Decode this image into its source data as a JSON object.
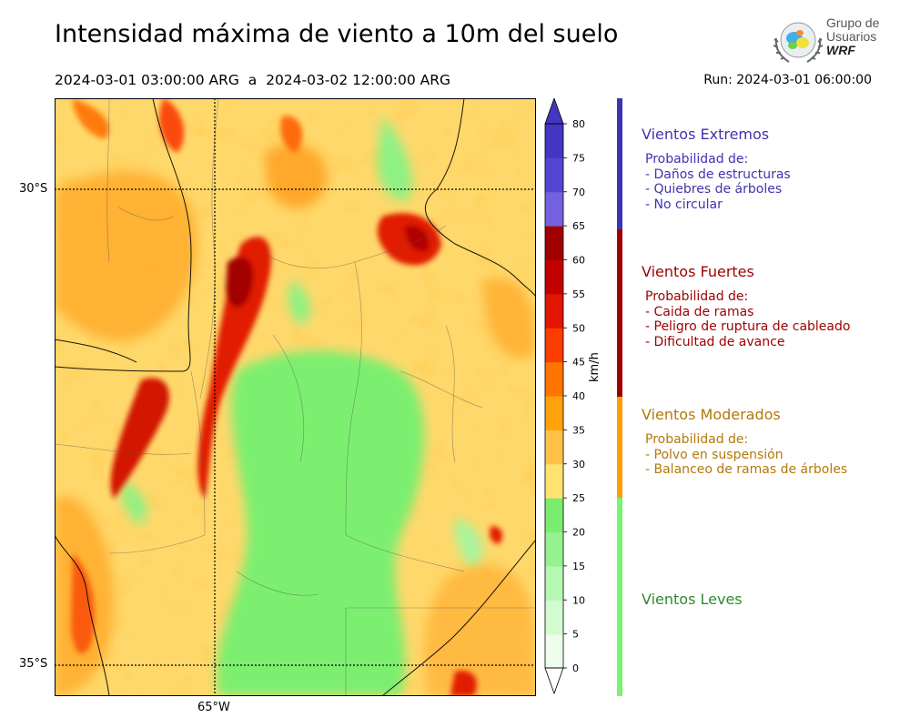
{
  "header": {
    "title": "Intensidad máxima de viento a 10m del suelo",
    "period": "2024-03-01 03:00:00 ARG  a  2024-03-02 12:00:00 ARG",
    "run": "Run: 2024-03-01 06:00:00"
  },
  "logo": {
    "line1": "Grupo de",
    "line2": "Usuarios",
    "line3": "WRF"
  },
  "map": {
    "lat_labels": [
      "30°S",
      "35°S"
    ],
    "lon_labels": [
      "65°W"
    ]
  },
  "colorbar": {
    "unit": "km/h",
    "ticks": [
      "0",
      "5",
      "10",
      "15",
      "20",
      "25",
      "30",
      "35",
      "40",
      "45",
      "50",
      "55",
      "60",
      "65",
      "70",
      "75",
      "80"
    ],
    "colors": [
      "#ecfdec",
      "#d2fbd0",
      "#b6f7b2",
      "#95f28e",
      "#78ed6e",
      "#ffe270",
      "#ffc247",
      "#ffa20c",
      "#ff7300",
      "#fa3c00",
      "#e11500",
      "#c20000",
      "#a10000",
      "#7461e0",
      "#5446d3",
      "#4336c2"
    ]
  },
  "categories": [
    {
      "name": "Vientos Extremos",
      "color": "#3f33b0",
      "bar_color": "#3f33b0",
      "desc": [
        "Probabilidad de:",
        "- Daños de estructuras",
        "- Quiebres de árboles",
        "- No circular"
      ]
    },
    {
      "name": "Vientos Fuertes",
      "color": "#9e0000",
      "bar_color": "#9e0000",
      "desc": [
        "Probabilidad de:",
        "- Caida de ramas",
        "- Peligro de ruptura de cableado",
        "- Dificultad de avance"
      ]
    },
    {
      "name": "Vientos Moderados",
      "color": "#b4780a",
      "bar_color": "#ff9f00",
      "desc": [
        "Probabilidad de:",
        "- Polvo en suspensión",
        "- Balanceo de ramas de árboles"
      ]
    },
    {
      "name": "Vientos Leves",
      "color": "#2f8a2f",
      "bar_color": "#78f56e",
      "desc": []
    }
  ]
}
